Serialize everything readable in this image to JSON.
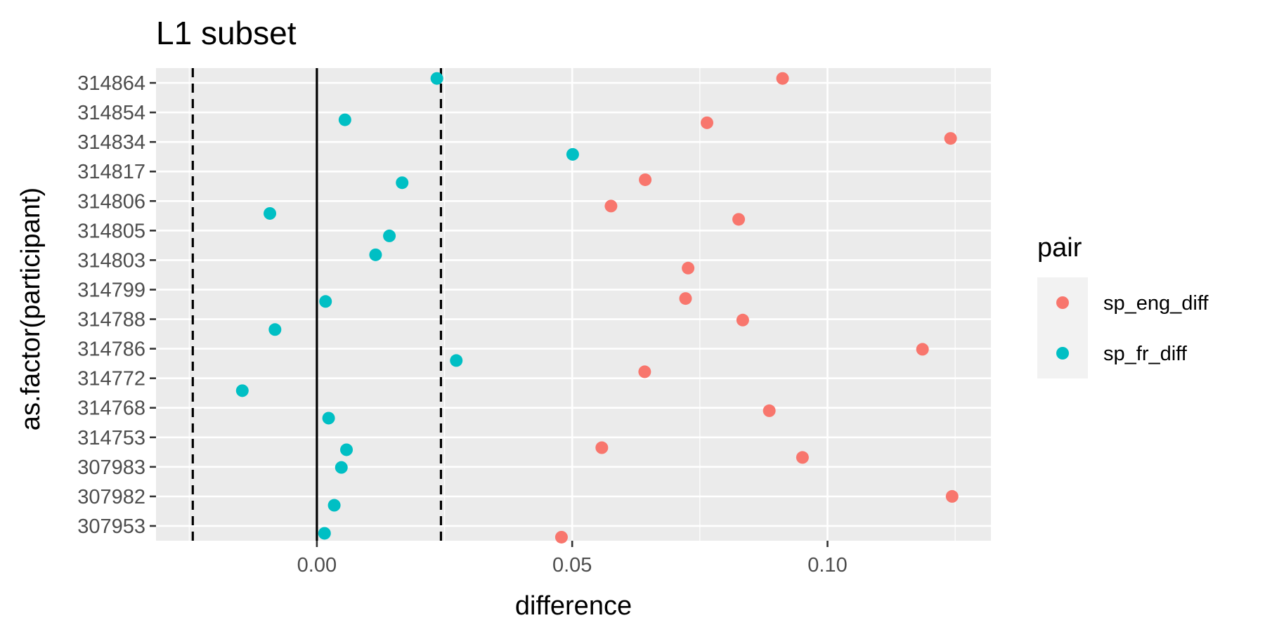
{
  "chart_data": {
    "type": "scatter",
    "title": "L1 subset",
    "xlabel": "difference",
    "ylabel": "as.factor(participant)",
    "xlim": [
      -0.0315,
      0.132
    ],
    "x_ticks": [
      {
        "value": 0.0,
        "label": "0.00"
      },
      {
        "value": 0.05,
        "label": "0.05"
      },
      {
        "value": 0.1,
        "label": "0.10"
      }
    ],
    "categories": [
      "314864",
      "314854",
      "314834",
      "314817",
      "314806",
      "314805",
      "314803",
      "314799",
      "314788",
      "314786",
      "314772",
      "314768",
      "314753",
      "307983",
      "307982",
      "307953"
    ],
    "reference_lines": [
      {
        "value": 0.0,
        "style": "solid"
      },
      {
        "value": -0.0243,
        "style": "dashed"
      },
      {
        "value": 0.0243,
        "style": "dashed"
      }
    ],
    "legend": {
      "title": "pair",
      "position": "right"
    },
    "grid": true,
    "series": [
      {
        "name": "sp_eng_diff",
        "color": "#F8766D",
        "points": [
          {
            "category": "314864",
            "x": 0.0912,
            "offset": -0.15
          },
          {
            "category": "314854",
            "x": 0.0764,
            "offset": 0.35
          },
          {
            "category": "314834",
            "x": 0.1241,
            "offset": -0.12
          },
          {
            "category": "314817",
            "x": 0.0643,
            "offset": 0.28
          },
          {
            "category": "314806",
            "x": 0.0576,
            "offset": 0.17
          },
          {
            "category": "314805",
            "x": 0.0826,
            "offset": -0.38
          },
          {
            "category": "314803",
            "x": 0.0727,
            "offset": 0.27
          },
          {
            "category": "314799",
            "x": 0.0722,
            "offset": 0.3
          },
          {
            "category": "314788",
            "x": 0.0834,
            "offset": 0.03
          },
          {
            "category": "314786",
            "x": 0.1186,
            "offset": 0.02
          },
          {
            "category": "314772",
            "x": 0.0642,
            "offset": -0.22
          },
          {
            "category": "314768",
            "x": 0.0886,
            "offset": 0.1
          },
          {
            "category": "314753",
            "x": 0.0558,
            "offset": 0.35
          },
          {
            "category": "307983",
            "x": 0.0951,
            "offset": -0.32
          },
          {
            "category": "307982",
            "x": 0.1244,
            "offset": 0.0
          },
          {
            "category": "307953",
            "x": 0.0479,
            "offset": 0.38
          }
        ]
      },
      {
        "name": "sp_fr_diff",
        "color": "#00BFC4",
        "points": [
          {
            "category": "314864",
            "x": 0.0235,
            "offset": -0.15
          },
          {
            "category": "314854",
            "x": 0.0055,
            "offset": 0.25
          },
          {
            "category": "314834",
            "x": 0.0501,
            "offset": 0.42
          },
          {
            "category": "314817",
            "x": 0.0167,
            "offset": 0.38
          },
          {
            "category": "314806",
            "x": -0.0092,
            "offset": 0.42
          },
          {
            "category": "314805",
            "x": 0.0142,
            "offset": 0.18
          },
          {
            "category": "314803",
            "x": 0.0115,
            "offset": -0.18
          },
          {
            "category": "314799",
            "x": 0.0017,
            "offset": 0.4
          },
          {
            "category": "314788",
            "x": -0.0082,
            "offset": 0.35
          },
          {
            "category": "314786",
            "x": 0.0273,
            "offset": 0.4
          },
          {
            "category": "314772",
            "x": -0.0146,
            "offset": 0.42
          },
          {
            "category": "314768",
            "x": 0.0023,
            "offset": 0.35
          },
          {
            "category": "314753",
            "x": 0.0058,
            "offset": 0.42
          },
          {
            "category": "307983",
            "x": 0.0048,
            "offset": 0.02
          },
          {
            "category": "307982",
            "x": 0.0034,
            "offset": 0.3
          },
          {
            "category": "307953",
            "x": 0.0015,
            "offset": 0.25
          }
        ]
      }
    ]
  }
}
